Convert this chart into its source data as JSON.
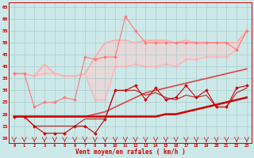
{
  "background_color": "#cce8e8",
  "grid_color": "#aacccc",
  "x_values": [
    0,
    1,
    2,
    3,
    4,
    5,
    6,
    7,
    8,
    9,
    10,
    11,
    12,
    13,
    14,
    15,
    16,
    17,
    18,
    19,
    20,
    21,
    22,
    23
  ],
  "x_labels": [
    "0",
    "1",
    "2",
    "3",
    "4",
    "5",
    "6",
    "7",
    "8",
    "9",
    "10",
    "11",
    "12",
    "13",
    "14",
    "15",
    "16",
    "17",
    "18",
    "19",
    "20",
    "21",
    "22",
    "23"
  ],
  "ylim": [
    8,
    67
  ],
  "yticks": [
    10,
    15,
    20,
    25,
    30,
    35,
    40,
    45,
    50,
    55,
    60,
    65
  ],
  "xlabel": "Vent moyen/en rafales ( km/h )",
  "line_upper_fill_top": {
    "y": [
      37,
      37,
      36,
      41,
      37,
      36,
      36,
      37,
      44,
      50,
      51,
      51,
      50,
      51,
      51,
      51,
      50,
      51,
      50,
      50,
      50,
      50,
      50,
      55
    ],
    "color": "#ffb0b0",
    "linewidth": 0.8,
    "marker": null,
    "zorder": 1
  },
  "line_upper_fill_bot": {
    "y": [
      37,
      37,
      36,
      37,
      37,
      36,
      36,
      37,
      26,
      26,
      40,
      40,
      41,
      40,
      40,
      41,
      40,
      43,
      43,
      44,
      44,
      44,
      47,
      55
    ],
    "color": "#ffb0b0",
    "linewidth": 0.8,
    "marker": "D",
    "markersize": 2.0,
    "zorder": 2
  },
  "line_pink_scatter": {
    "y": [
      37,
      37,
      23,
      25,
      25,
      27,
      26,
      44,
      43,
      44,
      44,
      61,
      55,
      50,
      50,
      50,
      50,
      50,
      50,
      50,
      50,
      50,
      47,
      55
    ],
    "color": "#ff7777",
    "linewidth": 0.8,
    "marker": "D",
    "markersize": 2.0,
    "zorder": 3
  },
  "line_trend_upper": {
    "y": [
      37,
      37,
      36,
      41,
      37,
      36,
      36,
      37,
      44,
      50,
      51,
      51,
      50,
      51,
      51,
      51,
      50,
      51,
      50,
      50,
      50,
      50,
      50,
      55
    ],
    "color": "#ffaaaa",
    "linewidth": 1.0,
    "marker": null,
    "zorder": 1
  },
  "line_trend_mid": {
    "y": [
      19,
      19,
      19,
      19,
      19,
      19,
      19,
      19,
      20,
      21,
      23,
      25,
      27,
      29,
      30,
      31,
      32,
      33,
      34,
      35,
      36,
      37,
      38,
      39
    ],
    "color": "#dd4444",
    "linewidth": 1.2,
    "marker": null,
    "zorder": 4
  },
  "line_trend_low": {
    "y": [
      19,
      19,
      19,
      19,
      19,
      19,
      19,
      19,
      19,
      19,
      19,
      19,
      19,
      19,
      19,
      20,
      20,
      21,
      22,
      23,
      24,
      25,
      26,
      27
    ],
    "color": "#cc0000",
    "linewidth": 1.8,
    "marker": null,
    "zorder": 5
  },
  "line_dark_scatter": {
    "y": [
      19,
      19,
      15,
      12,
      12,
      12,
      15,
      15,
      12,
      18,
      30,
      30,
      32,
      26,
      31,
      26,
      27,
      32,
      27,
      30,
      23,
      23,
      31,
      32
    ],
    "color": "#cc0000",
    "linewidth": 0.8,
    "marker": "D",
    "markersize": 2.0,
    "zorder": 6
  },
  "line_dark_scatter2": {
    "y": [
      19,
      19,
      15,
      15,
      15,
      15,
      15,
      18,
      18,
      18,
      30,
      30,
      30,
      28,
      29,
      27,
      26,
      28,
      27,
      28,
      23,
      23,
      29,
      31
    ],
    "color": "#bb2222",
    "linewidth": 0.8,
    "marker": null,
    "zorder": 5
  }
}
